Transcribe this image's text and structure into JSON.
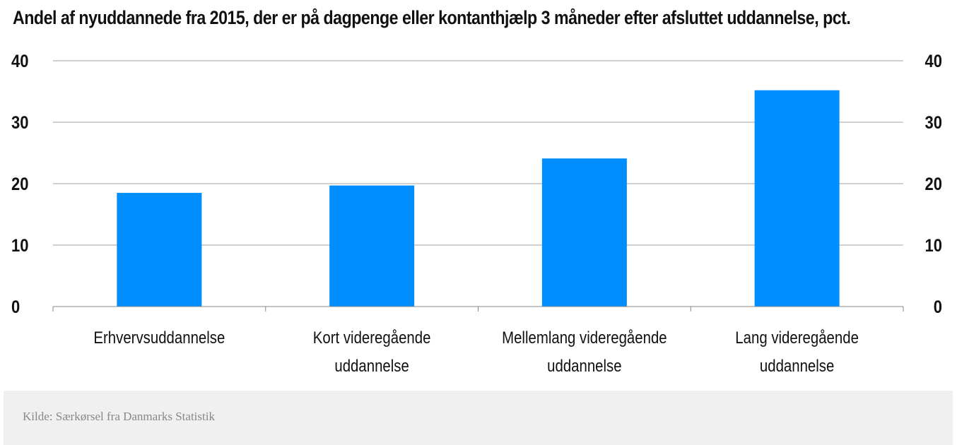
{
  "chart_data": {
    "type": "bar",
    "title": "Andel af nyuddannede fra 2015, der er på dagpenge eller kontanthjælp 3 måneder efter afsluttet uddannelse, pct.",
    "categories": [
      [
        "Erhvervsuddannelse"
      ],
      [
        "Kort videregående",
        "uddannelse"
      ],
      [
        "Mellemlang videregående",
        "uddannelse"
      ],
      [
        "Lang videregående",
        "uddannelse"
      ]
    ],
    "values": [
      18.5,
      19.7,
      24.1,
      35.2
    ],
    "yticks": [
      0,
      10,
      20,
      30,
      40
    ],
    "ylim": [
      0,
      40
    ],
    "grid": true,
    "axis_both_sides": true,
    "bar_color": "#008eff"
  },
  "source": "Kilde: Særkørsel fra Danmarks Statistik"
}
